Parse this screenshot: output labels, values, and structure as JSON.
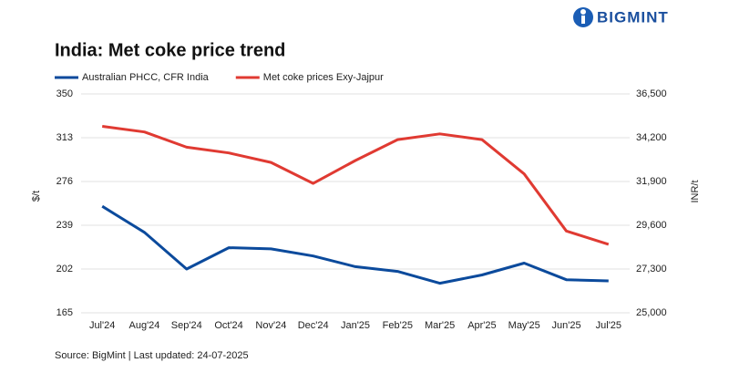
{
  "brand": "BIGMINT",
  "chart_data": {
    "type": "line",
    "title": "India: Met coke price trend",
    "source": "Source: BigMint | Last updated: 24-07-2025",
    "y_label": "$/t",
    "y2_label": "INR/t",
    "categories": [
      "Jul'24",
      "Aug'24",
      "Sep'24",
      "Oct'24",
      "Nov'24",
      "Dec'24",
      "Jan'25",
      "Feb'25",
      "Mar'25",
      "Apr'25",
      "May'25",
      "Jun'25",
      "Jul'25"
    ],
    "series": [
      {
        "name": "Australian PHCC, CFR India",
        "color": "#0b4a9c",
        "axis": "y",
        "values": [
          255,
          233,
          202,
          220,
          219,
          213,
          204,
          200,
          190,
          197,
          207,
          193,
          192
        ]
      },
      {
        "name": "Met coke prices Exy-Jajpur",
        "color": "#e03a32",
        "axis": "y2",
        "values": [
          34800,
          34500,
          33700,
          33400,
          32900,
          31800,
          33000,
          34100,
          34400,
          34100,
          32300,
          29300,
          28600
        ]
      }
    ],
    "ylim": [
      165,
      350
    ],
    "yticks": [
      165,
      202,
      239,
      276,
      313,
      350
    ],
    "y2lim": [
      25000,
      36500
    ],
    "y2ticks": [
      {
        "value": 25000,
        "label": "25,000"
      },
      {
        "value": 27300,
        "label": "27,300"
      },
      {
        "value": 29600,
        "label": "29,600"
      },
      {
        "value": 31900,
        "label": "31,900"
      },
      {
        "value": 34200,
        "label": "34,200"
      },
      {
        "value": 36500,
        "label": "36,500"
      }
    ],
    "grid": true,
    "legend": "top-left"
  }
}
